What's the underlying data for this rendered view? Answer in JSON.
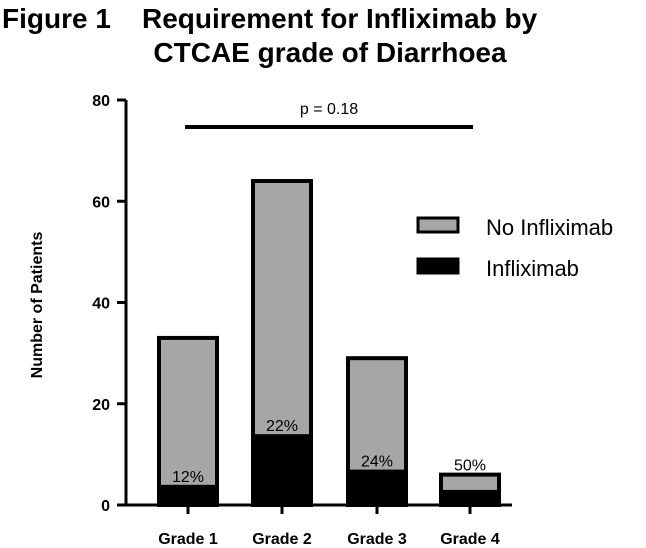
{
  "title": {
    "figure_label": "Figure 1",
    "line1": "Requirement for Infliximab by",
    "line2": "CTCAE grade of Diarrhoea"
  },
  "chart_data": {
    "type": "bar",
    "stacked": true,
    "categories": [
      "Grade 1",
      "Grade 2",
      "Grade 3",
      "Grade 4"
    ],
    "series": [
      {
        "name": "Infliximab",
        "values": [
          4,
          14,
          7,
          3
        ],
        "color": "#000000"
      },
      {
        "name": "No Infliximab",
        "values": [
          29,
          50,
          22,
          3
        ],
        "color": "#a6a6a6"
      }
    ],
    "percent_labels": [
      "12%",
      "22%",
      "24%",
      "50%"
    ],
    "ylabel": "Number of Patients",
    "ylim": [
      0,
      80
    ],
    "yticks": [
      0,
      20,
      40,
      60,
      80
    ],
    "legend_position": "right",
    "legend_order": [
      "No Infliximab",
      "Infliximab"
    ],
    "annotation": {
      "text": "p = 0.18",
      "from_category": "Grade 1",
      "to_category": "Grade 4"
    }
  }
}
